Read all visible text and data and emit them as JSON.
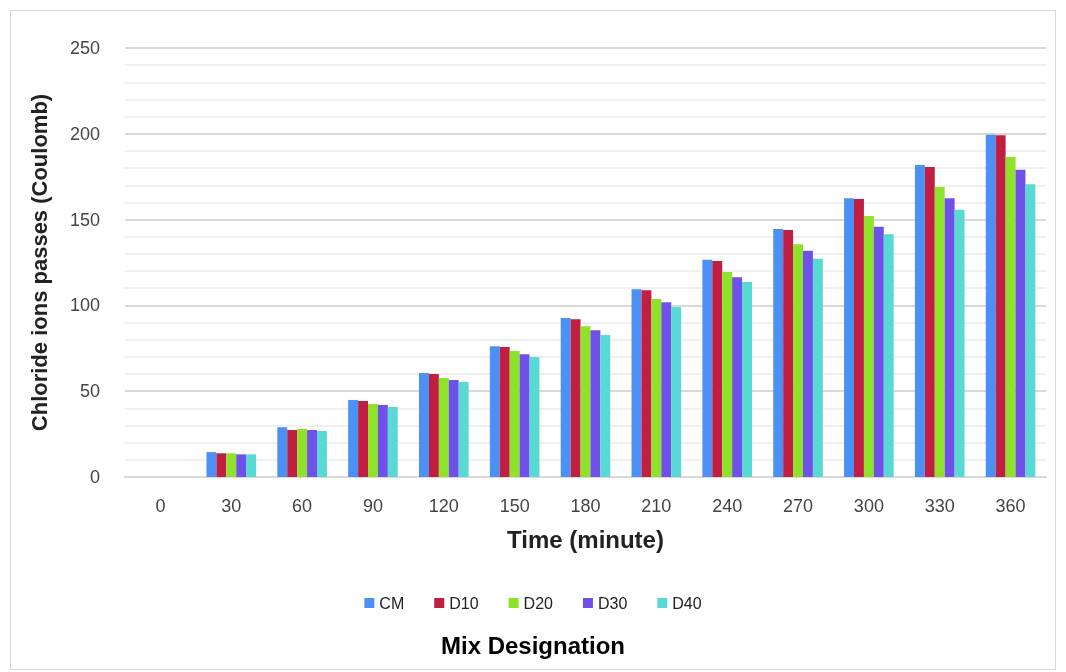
{
  "chart_data": {
    "type": "bar",
    "xlabel": "Time (minute)",
    "ylabel": "Chloride ions passes (Coulomb)",
    "legend_title": "Mix Designation",
    "categories": [
      "0",
      "30",
      "60",
      "90",
      "120",
      "150",
      "180",
      "210",
      "240",
      "270",
      "300",
      "330",
      "360"
    ],
    "series": [
      {
        "name": "CM",
        "color": "#4a90f5",
        "values": [
          0,
          14.5,
          29,
          44.9,
          60.6,
          76.2,
          92.7,
          109.4,
          126.6,
          144.5,
          162.4,
          181.8,
          199.5
        ]
      },
      {
        "name": "D10",
        "color": "#c01f42",
        "values": [
          0,
          13.8,
          27.4,
          44.3,
          60,
          75.8,
          91.9,
          108.8,
          125.9,
          143.9,
          162,
          180.6,
          199.1
        ]
      },
      {
        "name": "D20",
        "color": "#8ee32a",
        "values": [
          0,
          13.8,
          28,
          42.5,
          57.7,
          73.4,
          87.8,
          103.7,
          119.5,
          135.6,
          152.1,
          169,
          186.5
        ]
      },
      {
        "name": "D30",
        "color": "#6f50e8",
        "values": [
          0,
          13.2,
          27.4,
          42,
          56.5,
          71.5,
          85.5,
          101.8,
          116.4,
          131.9,
          145.9,
          162.4,
          179.1
        ]
      },
      {
        "name": "D40",
        "color": "#58d9d4",
        "values": [
          0,
          13.2,
          26.8,
          40.8,
          55.4,
          69.9,
          82.7,
          99,
          113.6,
          127.2,
          141.4,
          155.8,
          170.6
        ]
      }
    ],
    "ylim": [
      0,
      250
    ],
    "yticks": [
      0,
      {
        "value": 10,
        "label": null
      },
      {
        "value": 20,
        "label": null
      },
      {
        "value": 30,
        "label": null
      },
      {
        "value": 40,
        "label": null
      },
      50,
      {
        "value": 60,
        "label": null
      },
      {
        "value": 70,
        "label": null
      },
      {
        "value": 80,
        "label": null
      },
      {
        "value": 90,
        "label": null
      },
      100,
      {
        "value": 110,
        "label": null
      },
      {
        "value": 120,
        "label": null
      },
      {
        "value": 130,
        "label": null
      },
      {
        "value": 140,
        "label": null
      },
      150,
      {
        "value": 160,
        "label": null
      },
      {
        "value": 170,
        "label": null
      },
      {
        "value": 180,
        "label": null
      },
      {
        "value": 190,
        "label": null
      },
      200,
      {
        "value": 210,
        "label": null
      },
      {
        "value": 220,
        "label": null
      },
      {
        "value": 230,
        "label": null
      },
      {
        "value": 240,
        "label": null
      },
      250
    ],
    "grid": "y",
    "legend": "bottom"
  }
}
